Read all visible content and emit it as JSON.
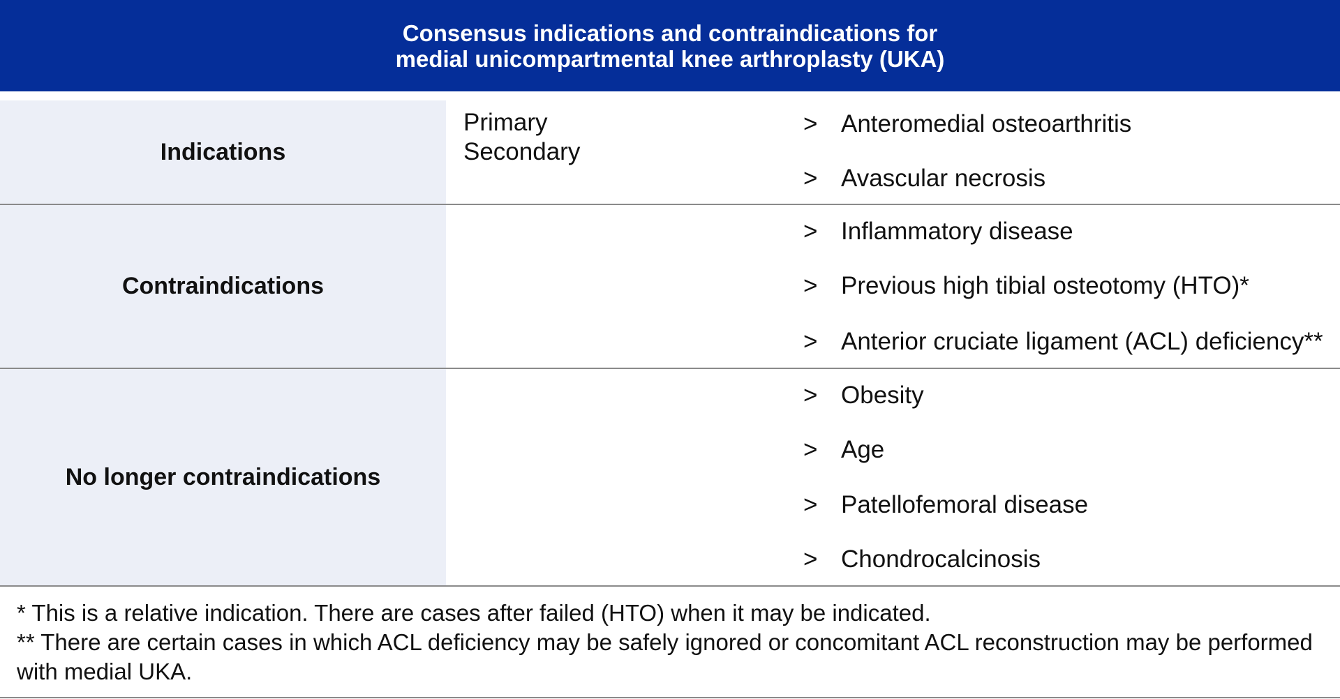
{
  "title": {
    "line1": "Consensus indications and contraindications for",
    "line2": "medial unicompartmental knee arthroplasty (UKA)"
  },
  "rows": [
    {
      "label": "Indications",
      "sub": [
        "Primary",
        "Secondary"
      ],
      "items": [
        "Anteromedial osteoarthritis",
        "Avascular necrosis"
      ]
    },
    {
      "label": "Contraindications",
      "items": [
        "Inflammatory disease",
        "Previous high tibial osteotomy (HTO)*",
        "Anterior cruciate ligament (ACL) deficiency**"
      ]
    },
    {
      "label": "No longer contraindications",
      "items": [
        "Obesity",
        "Age",
        "Patellofemoral disease",
        "Chondrocalcinosis"
      ]
    }
  ],
  "bullet": ">",
  "footnotes": [
    "* This is a relative indication. There are cases after failed (HTO) when it may be indicated.",
    "** There are certain cases in which ACL deficiency may be safely ignored or concomitant ACL reconstruction may be performed with medial UKA."
  ],
  "colors": {
    "header": "#052e99",
    "label_bg": "#eceff7"
  }
}
